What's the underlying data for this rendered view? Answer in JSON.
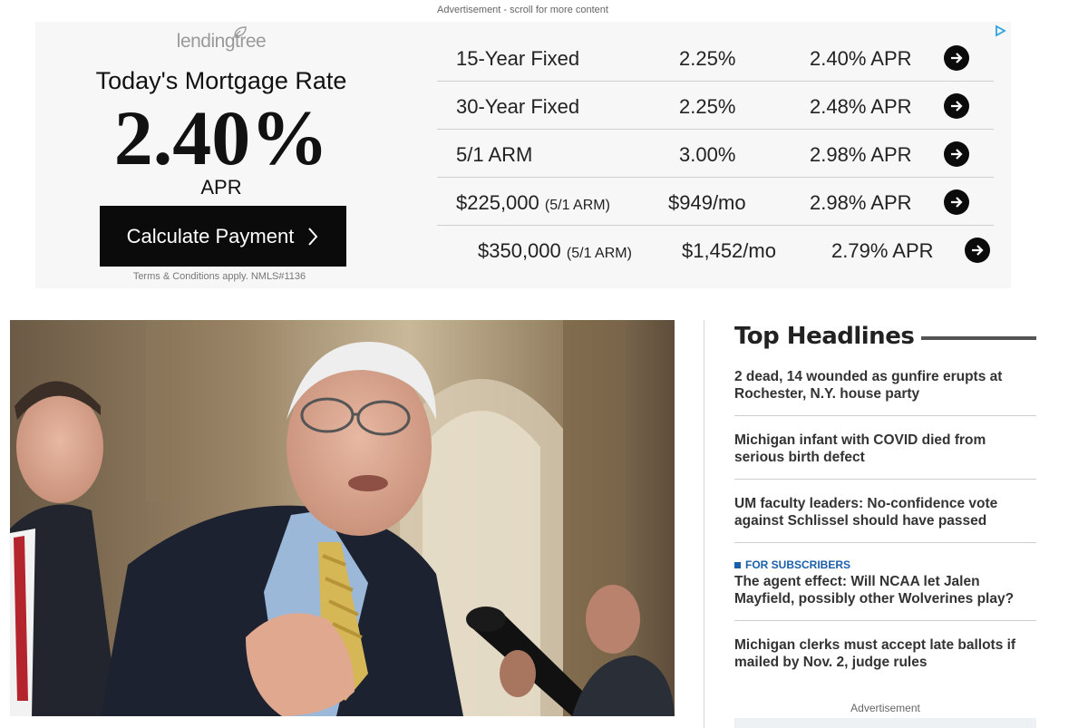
{
  "ad_notice": "Advertisement - scroll for more content",
  "mortgage_ad": {
    "brand": "lendingtree",
    "title": "Today's Mortgage Rate",
    "rate": "2.40%",
    "rate_unit": "APR",
    "cta": "Calculate Payment",
    "terms": "Terms & Conditions apply. NMLS#1136",
    "rows": [
      {
        "product": "15-Year Fixed",
        "product_note": "",
        "rate": "2.25%",
        "apr": "2.40% APR"
      },
      {
        "product": "30-Year Fixed",
        "product_note": "",
        "rate": "2.25%",
        "apr": "2.48% APR"
      },
      {
        "product": "5/1 ARM",
        "product_note": "",
        "rate": "3.00%",
        "apr": "2.98% APR"
      },
      {
        "product": "$225,000",
        "product_note": "(5/1 ARM)",
        "rate": "$949/mo",
        "apr": "2.98% APR"
      },
      {
        "product": "$350,000",
        "product_note": "(5/1 ARM)",
        "rate": "$1,452/mo",
        "apr": "2.79% APR"
      }
    ]
  },
  "headlines": {
    "title": "Top Headlines",
    "items": [
      {
        "tag": "",
        "text": "2 dead, 14 wounded as gunfire erupts at Rochester, N.Y. house party"
      },
      {
        "tag": "",
        "text": "Michigan infant with COVID died from serious birth defect"
      },
      {
        "tag": "",
        "text": "UM faculty leaders: No-confidence vote against Schlissel should have passed"
      },
      {
        "tag": "FOR SUBSCRIBERS",
        "text": "The agent effect: Will NCAA let Jalen Mayfield, possibly other Wolverines play?"
      },
      {
        "tag": "",
        "text": "Michigan clerks must accept late ballots if mailed by Nov. 2, judge rules"
      }
    ]
  },
  "side_ad_label": "Advertisement",
  "colors": {
    "accent_blue": "#1b5faa",
    "button_black": "#0b0b0b",
    "ad_bg": "#f7f7f7"
  }
}
